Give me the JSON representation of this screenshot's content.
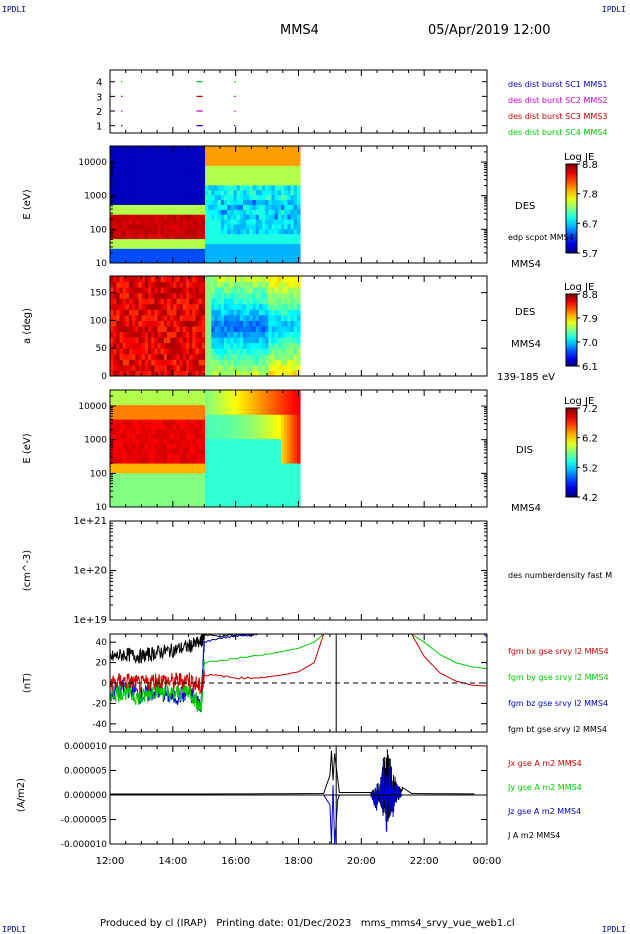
{
  "header": {
    "corner_left": "IPDLI",
    "corner_right": "IPDLI",
    "spacecraft": "MMS4",
    "datetime": "05/Apr/2019 12:00"
  },
  "footer": {
    "produced_by": "Produced by cl (IRAP)",
    "printing_date": "Printing date: 01/Dec/2023",
    "filename": "mms_mms4_srvy_vue_web1.cl",
    "corner_left": "IPDLI",
    "corner_right": "IPDLI"
  },
  "time_axis": {
    "tick_labels": [
      "12:00",
      "14:00",
      "16:00",
      "18:00",
      "20:00",
      "22:00",
      "00:00"
    ],
    "range_hours": [
      12,
      24
    ]
  },
  "chart_data": [
    {
      "type": "scatter",
      "id": "burst-availability",
      "yticks": [
        "1",
        "2",
        "3",
        "4"
      ],
      "legend": [
        {
          "label": "des dist burst SC1 MMS1",
          "color": "#0000cc"
        },
        {
          "label": "des dist burst SC2 MMS2",
          "color": "#cc00cc"
        },
        {
          "label": "des dist burst SC3 MMS3",
          "color": "#cc0000"
        },
        {
          "label": "des dist burst SC4 MMS4",
          "color": "#00cc00"
        }
      ],
      "marks": [
        {
          "sc": 1,
          "t": [
            12.35,
            12.35
          ]
        },
        {
          "sc": 1,
          "t": [
            14.75,
            14.95
          ]
        },
        {
          "sc": 1,
          "t": [
            15.95,
            15.96
          ]
        },
        {
          "sc": 2,
          "t": [
            12.35,
            12.35
          ]
        },
        {
          "sc": 2,
          "t": [
            14.75,
            14.95
          ]
        },
        {
          "sc": 2,
          "t": [
            15.95,
            15.96
          ]
        },
        {
          "sc": 3,
          "t": [
            12.35,
            12.35
          ]
        },
        {
          "sc": 3,
          "t": [
            14.75,
            14.95
          ]
        },
        {
          "sc": 3,
          "t": [
            15.95,
            15.96
          ]
        },
        {
          "sc": 4,
          "t": [
            12.35,
            12.35
          ]
        },
        {
          "sc": 4,
          "t": [
            14.75,
            14.95
          ]
        },
        {
          "sc": 4,
          "t": [
            15.95,
            15.96
          ]
        }
      ]
    },
    {
      "type": "heatmap",
      "id": "des-energy",
      "ylabel": "E (eV)",
      "yscale": "log",
      "ylim": [
        10,
        30000
      ],
      "ytick_labels": [
        "10",
        "100",
        "1000",
        "10000"
      ],
      "right_labels": [
        "DES",
        "MMS4"
      ],
      "overlay_label": "edp scpot MMS4",
      "colorbar": {
        "title": "Log JE",
        "ticks": [
          "8.8",
          "7.8",
          "6.7",
          "5.7"
        ],
        "range": [
          5.7,
          8.8
        ]
      },
      "data_t_range": [
        12,
        18.05
      ]
    },
    {
      "type": "heatmap",
      "id": "des-pitch",
      "ylabel": "a (deg)",
      "ylim": [
        0,
        180
      ],
      "ytick_labels": [
        "0",
        "50",
        "100",
        "150"
      ],
      "right_labels": [
        "DES",
        "MMS4",
        "139-185 eV"
      ],
      "colorbar": {
        "title": "Log JE",
        "ticks": [
          "8.8",
          "7.9",
          "7.0",
          "6.1"
        ],
        "range": [
          6.1,
          8.8
        ]
      },
      "data_t_range": [
        12,
        18.05
      ]
    },
    {
      "type": "heatmap",
      "id": "dis-energy",
      "ylabel": "E (eV)",
      "yscale": "log",
      "ylim": [
        10,
        30000
      ],
      "ytick_labels": [
        "10",
        "100",
        "1000",
        "10000"
      ],
      "right_labels": [
        "DIS",
        "MMS4"
      ],
      "colorbar": {
        "title": "Log JE",
        "ticks": [
          "7.2",
          "6.2",
          "5.2",
          "4.2"
        ],
        "range": [
          4.2,
          7.2
        ]
      },
      "data_t_range": [
        12,
        18.05
      ]
    },
    {
      "type": "line",
      "id": "density",
      "ylabel": "(cm^-3)",
      "yscale": "log",
      "ylim": [
        1e+19,
        1e+21
      ],
      "ytick_labels": [
        "1e+19",
        "1e+20",
        "1e+21"
      ],
      "legend": [
        {
          "label": "des numberdensity fast M",
          "color": "#000000"
        }
      ]
    },
    {
      "type": "line",
      "id": "fgm-b",
      "ylabel": "(nT)",
      "ylim": [
        -48,
        48
      ],
      "ytick_labels": [
        "-40",
        "-20",
        "0",
        "20",
        "40"
      ],
      "legend": [
        {
          "label": "fgm bx gse srvy l2 MMS4",
          "color": "#cc0000"
        },
        {
          "label": "fgm by gse srvy l2 MMS4",
          "color": "#00cc00"
        },
        {
          "label": "fgm bz gse srvy l2 MMS4",
          "color": "#0000cc"
        },
        {
          "label": "fgm bt gse srvy l2 MMS4",
          "color": "#000000"
        }
      ],
      "series": [
        {
          "name": "fgm bt gse srvy l2 MMS4",
          "color": "#000000",
          "x": [
            12,
            12.5,
            13,
            13.5,
            14,
            14.5,
            14.9,
            15.0,
            15.5,
            16,
            16.5,
            16.7
          ],
          "y": [
            25,
            28,
            26,
            30,
            32,
            36,
            40,
            47,
            46,
            47,
            47,
            48
          ]
        },
        {
          "name": "fgm bz gse srvy l2 MMS4",
          "color": "#0000cc",
          "x": [
            12,
            12.5,
            13,
            13.5,
            14,
            14.5,
            14.9,
            15.0,
            15.5,
            16,
            16.5,
            16.7,
            23.9,
            24
          ],
          "y": [
            -10,
            -5,
            -12,
            -8,
            -14,
            -10,
            -20,
            40,
            44,
            46,
            47,
            48,
            48,
            45
          ]
        },
        {
          "name": "fgm by gse srvy l2 MMS4",
          "color": "#00cc00",
          "x": [
            12,
            12.5,
            13,
            13.5,
            14,
            14.5,
            14.9,
            15.0,
            15.5,
            16,
            16.5,
            17,
            17.5,
            18,
            18.5,
            18.8,
            21.6,
            22,
            22.5,
            23,
            23.5,
            24
          ],
          "y": [
            -10,
            -8,
            -15,
            -5,
            -12,
            -6,
            -25,
            20,
            22,
            24,
            26,
            28,
            31,
            34,
            40,
            48,
            48,
            40,
            28,
            20,
            16,
            14
          ]
        },
        {
          "name": "fgm bx gse srvy l2 MMS4",
          "color": "#cc0000",
          "x": [
            12,
            12.5,
            13,
            13.5,
            14,
            14.5,
            14.9,
            15.0,
            15.5,
            16,
            16.5,
            17,
            17.5,
            18,
            18.5,
            18.8,
            21.6,
            22,
            22.5,
            23,
            23.5,
            24
          ],
          "y": [
            0,
            2,
            -2,
            3,
            1,
            4,
            -5,
            8,
            7,
            5,
            5,
            6,
            8,
            11,
            20,
            48,
            48,
            26,
            10,
            2,
            -2,
            -3
          ]
        }
      ],
      "zero_line": true,
      "vertical_marker_t": 19.2
    },
    {
      "type": "line",
      "id": "current-density",
      "ylabel": "(A/m2)",
      "ylim": [
        -1e-05,
        1e-05
      ],
      "ytick_labels": [
        "-0.000010",
        "-0.000005",
        "0.000000",
        "0.000005",
        "0.000010"
      ],
      "legend": [
        {
          "label": "Jx gse A m2 MMS4",
          "color": "#cc0000"
        },
        {
          "label": "Jy gse A m2 MMS4",
          "color": "#00cc00"
        },
        {
          "label": "Jz gse A m2 MMS4",
          "color": "#0000cc"
        },
        {
          "label": "J A m2 MMS4",
          "color": "#000000"
        }
      ],
      "series": [
        {
          "name": "Jz gse A m2 MMS4",
          "color": "#0000cc",
          "x": [
            12,
            15,
            18.8,
            19.0,
            19.05,
            19.1,
            19.15,
            19.25,
            19.3,
            20.3,
            20.5,
            20.7,
            20.8,
            20.9,
            21.0,
            21.1,
            21.3,
            21.6,
            24
          ],
          "y": [
            0,
            0,
            0,
            -2e-06,
            -1e-05,
            2e-06,
            -1e-05,
            -1e-06,
            0,
            0,
            -4e-06,
            9e-06,
            -1e-05,
            1e-05,
            -6e-06,
            3e-06,
            0,
            0,
            0
          ]
        },
        {
          "name": "J A m2 MMS4",
          "color": "#000000",
          "x": [
            12,
            15,
            18.8,
            19.0,
            19.05,
            19.1,
            19.15,
            19.3,
            20.3,
            20.6,
            20.75,
            20.85,
            21.0,
            21.2,
            21.6,
            24
          ],
          "y": [
            2e-07,
            2e-07,
            3e-07,
            4e-06,
            9e-06,
            3e-06,
            8.5e-06,
            5e-07,
            5e-07,
            3e-06,
            8.5e-06,
            1e-05,
            5e-06,
            2e-06,
            3e-07,
            2e-07
          ]
        }
      ],
      "vertical_marker_t": 19.2
    }
  ]
}
